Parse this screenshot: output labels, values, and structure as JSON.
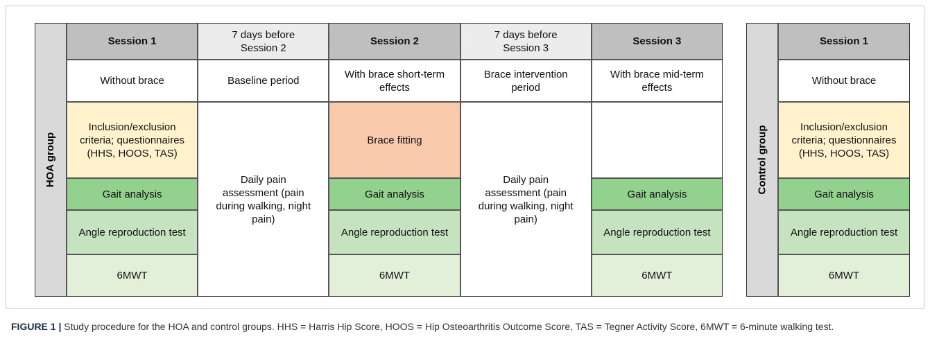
{
  "hoa_table": {
    "group_label": "HOA group",
    "columns": [
      {
        "header": "Session 1",
        "header_color": "#bfbfbf",
        "cells": [
          {
            "text": "Without brace",
            "color": "#ffffff"
          },
          {
            "text": "Inclusion/exclusion criteria; questionnaires (HHS, HOOS, TAS)",
            "color": "#fff2cc"
          },
          {
            "text": "Gait analysis",
            "color": "#93d18f"
          },
          {
            "text": "Angle reproduction test",
            "color": "#c5e3bf"
          },
          {
            "text": "6MWT",
            "color": "#e2f0d9"
          }
        ]
      },
      {
        "header": "7 days before Session 2",
        "header_color": "#ececec",
        "cells": [
          {
            "text": "Baseline period",
            "color": "#ffffff"
          },
          {
            "text": "Daily pain assessment (pain during walking, night pain)",
            "color": "#ffffff"
          }
        ]
      },
      {
        "header": "Session 2",
        "header_color": "#bfbfbf",
        "cells": [
          {
            "text": "With brace short-term effects",
            "color": "#ffffff"
          },
          {
            "text": "Brace fitting",
            "color": "#f8c9ab"
          },
          {
            "text": "Gait analysis",
            "color": "#93d18f"
          },
          {
            "text": "Angle reproduction test",
            "color": "#c5e3bf"
          },
          {
            "text": "6MWT",
            "color": "#e2f0d9"
          }
        ]
      },
      {
        "header": "7 days before Session 3",
        "header_color": "#ececec",
        "cells": [
          {
            "text": "Brace intervention period",
            "color": "#ffffff"
          },
          {
            "text": "Daily pain assessment (pain during walking, night pain)",
            "color": "#ffffff"
          }
        ]
      },
      {
        "header": "Session  3",
        "header_color": "#bfbfbf",
        "cells": [
          {
            "text": "With brace mid-term effects",
            "color": "#ffffff"
          },
          {
            "text": "Gait analysis",
            "color": "#93d18f"
          },
          {
            "text": "Angle reproduction test",
            "color": "#c5e3bf"
          },
          {
            "text": "6MWT",
            "color": "#e2f0d9"
          }
        ]
      }
    ]
  },
  "control_table": {
    "group_label": "Control group",
    "columns": [
      {
        "header": "Session 1",
        "header_color": "#bfbfbf",
        "cells": [
          {
            "text": "Without brace",
            "color": "#ffffff"
          },
          {
            "text": "Inclusion/exclusion criteria; questionnaires (HHS, HOOS, TAS)",
            "color": "#fff2cc"
          },
          {
            "text": "Gait analysis",
            "color": "#93d18f"
          },
          {
            "text": "Angle reproduction test",
            "color": "#c5e3bf"
          },
          {
            "text": "6MWT",
            "color": "#e2f0d9"
          }
        ]
      }
    ]
  },
  "caption": {
    "label": "FIGURE 1 |",
    "text": "Study procedure for the HOA and control groups. HHS = Harris Hip Score, HOOS = Hip Osteoarthritis Outcome Score, TAS = Tegner Activity Score, 6MWT = 6-minute walking test."
  }
}
